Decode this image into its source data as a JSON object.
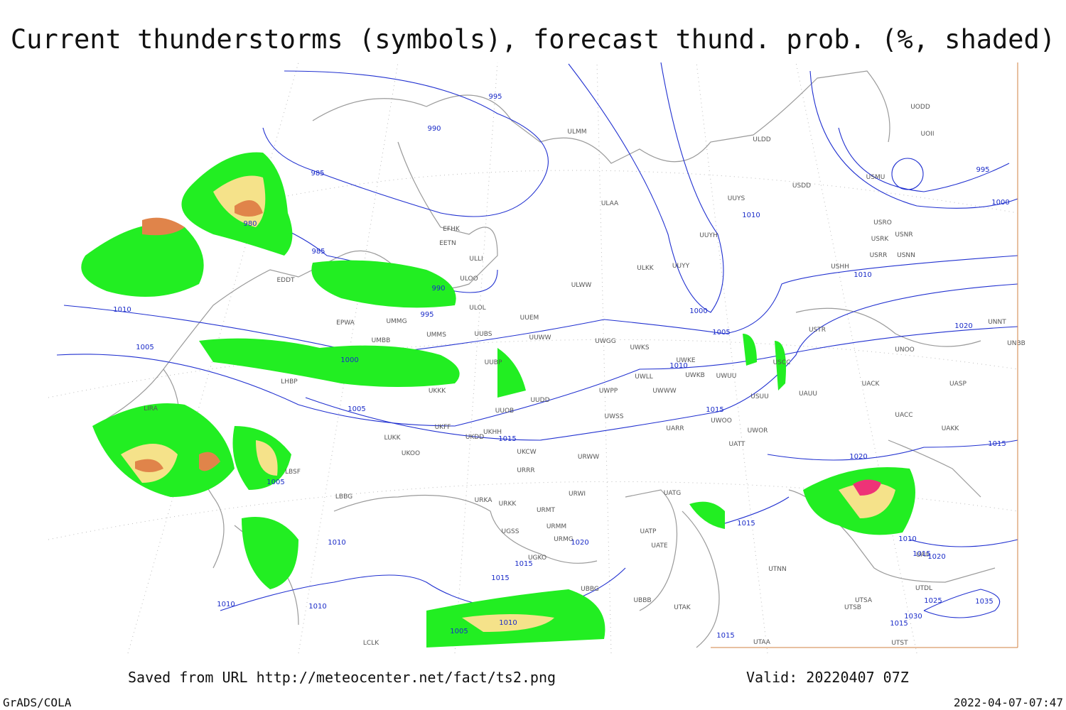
{
  "header": {
    "title": "Current thunderstorms (symbols), forecast thund. prob. (%, shaded)"
  },
  "footer": {
    "source": "Saved from URL http://meteocenter.net/fact/ts2.png",
    "valid": "Valid: 20220407 07Z",
    "software": "GrADS/COLA",
    "timestamp": "2022-04-07-07:47"
  },
  "map": {
    "stations": [
      "ULMM",
      "ULDD",
      "UODD",
      "UOII",
      "USMU",
      "USDD",
      "ULAA",
      "UUYS",
      "USRO",
      "USNR",
      "USRK",
      "UUYH",
      "USRR",
      "USNN",
      "ULKK",
      "UUYY",
      "USHH",
      "ULWW",
      "EFHK",
      "EETN",
      "ULLI",
      "ULOO",
      "ULOL",
      "EDDT",
      "EPWA",
      "UMMG",
      "UUEM",
      "UMMS",
      "UUBS",
      "UUWW",
      "UWGG",
      "UWKS",
      "USTR",
      "UNNT",
      "UNBB",
      "UMBB",
      "UNOO",
      "UUBP",
      "UWKE",
      "USCC",
      "UKKK",
      "UUDD",
      "UWPP",
      "UWWW",
      "UWLL",
      "UWKB",
      "UWUU",
      "USUU",
      "UAUU",
      "UACK",
      "UASP",
      "LHBP",
      "UUOB",
      "UWSS",
      "UACC",
      "LIRA",
      "UKHH",
      "UKFF",
      "UWOO",
      "UWOR",
      "UAKK",
      "LUKK",
      "UKDD",
      "UARR",
      "UATT",
      "UKOO",
      "UKCW",
      "URWW",
      "URRR",
      "LBSF",
      "UATG",
      "URWI",
      "LBBG",
      "URKA",
      "URKK",
      "URMT",
      "UGSS",
      "URMM",
      "URMG",
      "UATE",
      "UATP",
      "UGKO",
      "UTNN",
      "UBBG",
      "UTDL",
      "UTAK",
      "UBBB",
      "UTSA",
      "UTSB",
      "UTST",
      "UTAA",
      "LCLK",
      "UAII"
    ],
    "isobar_labels": [
      "995",
      "990",
      "985",
      "980",
      "985",
      "990",
      "995",
      "1010",
      "1005",
      "1000",
      "1005",
      "1005",
      "1010",
      "1010",
      "1010",
      "1015",
      "1015",
      "1015",
      "1010",
      "1005",
      "1020",
      "1010",
      "1000",
      "1005",
      "1010",
      "1015",
      "1010",
      "1020",
      "995",
      "1000",
      "1015",
      "1020",
      "1015",
      "1010",
      "1015",
      "1020",
      "1025",
      "1035",
      "1030",
      "1015",
      "1015"
    ]
  }
}
